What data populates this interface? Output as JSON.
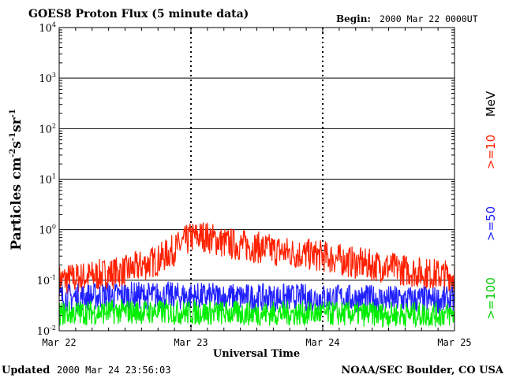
{
  "header": {
    "title": "GOES8 Proton Flux (5 minute data)",
    "begin_label": "Begin:",
    "begin_value": "2000 Mar 22 0000UT"
  },
  "footer": {
    "updated_label": "Updated",
    "updated_value": "2000 Mar 24 23:56:03",
    "credit": "NOAA/SEC Boulder, CO USA"
  },
  "chart_data": {
    "type": "line",
    "title": "GOES8 Proton Flux (5 minute data)",
    "xlabel": "Universal Time",
    "ylabel": {
      "base": "Particles cm",
      "parts": [
        {
          "exp": "-2",
          "text": "s"
        },
        {
          "exp": "-1",
          "text": "sr"
        },
        {
          "exp": "-1",
          "text": ""
        }
      ]
    },
    "y_scale": "log",
    "ylim": [
      0.01,
      10000
    ],
    "y_ticks": [
      {
        "base": "10",
        "exp": "4"
      },
      {
        "base": "10",
        "exp": "3"
      },
      {
        "base": "10",
        "exp": "2"
      },
      {
        "base": "10",
        "exp": "1"
      },
      {
        "base": "10",
        "exp": "0"
      },
      {
        "base": "10",
        "exp": "-1"
      },
      {
        "base": "10",
        "exp": "-2"
      }
    ],
    "x_ticks": [
      "Mar 22",
      "Mar 23",
      "Mar 24",
      "Mar 25"
    ],
    "grid": "horizontal lines at each decade; dashed vertical markers at day boundaries",
    "legend": {
      "position": "right, vertical",
      "unit": "MeV",
      "entries": [
        {
          "label": ">=10",
          "color": "#ff2000"
        },
        {
          "label": ">=50",
          "color": "#2020ff"
        },
        {
          "label": ">=100",
          "color": "#00ee00"
        }
      ]
    },
    "series": [
      {
        "name": ">=10",
        "color": "#ff2000",
        "x_days": [
          0,
          0.25,
          0.5,
          0.75,
          0.9,
          1.0,
          1.1,
          1.25,
          1.5,
          1.75,
          2.0,
          2.25,
          2.5,
          2.75,
          3.0
        ],
        "values": [
          0.1,
          0.12,
          0.15,
          0.25,
          0.45,
          0.7,
          0.75,
          0.55,
          0.45,
          0.35,
          0.3,
          0.22,
          0.18,
          0.14,
          0.12
        ]
      },
      {
        "name": ">=50",
        "color": "#2020ff",
        "x_days": [
          0,
          0.5,
          1.0,
          1.5,
          2.0,
          2.5,
          3.0
        ],
        "values": [
          0.045,
          0.05,
          0.048,
          0.045,
          0.045,
          0.042,
          0.04
        ]
      },
      {
        "name": ">=100",
        "color": "#00ee00",
        "x_days": [
          0,
          0.5,
          1.0,
          1.5,
          2.0,
          2.5,
          3.0
        ],
        "values": [
          0.022,
          0.024,
          0.023,
          0.022,
          0.022,
          0.021,
          0.021
        ]
      }
    ]
  }
}
